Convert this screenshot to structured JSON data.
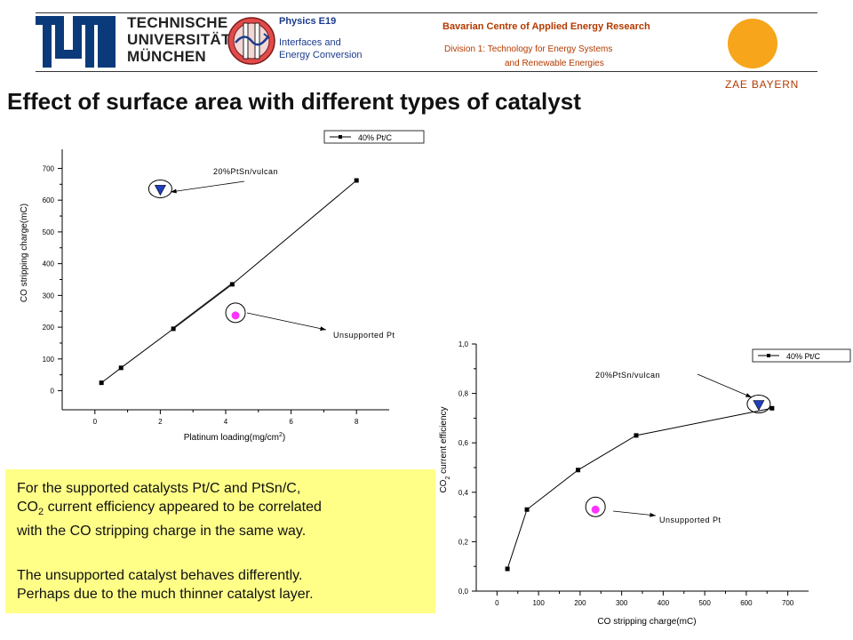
{
  "header": {
    "tum_name_lines": [
      "TECHNISCHE",
      "UNIVERSITÄT",
      "MÜNCHEN"
    ],
    "physics_title": "Physics E19",
    "physics_subtitle_lines": [
      "Interfaces and",
      "Energy Conversion"
    ],
    "zae_title": "Bavarian Centre of Applied Energy Research",
    "zae_division_lines": [
      "Division 1: Technology for Energy Systems",
      "and Renewable Energies"
    ],
    "zae_name": "ZAE BAYERN",
    "zae_sun_color": "#f7a51a"
  },
  "slide": {
    "title": "Effect of surface area with different types of catalyst"
  },
  "note": {
    "para1_lines": [
      "For the supported catalysts Pt/C and PtSn/C,",
      "current efficiency appeared to be correlated",
      "with the CO stripping charge in the same way."
    ],
    "co2_prefix": "CO",
    "co2_sub": "2",
    "para2_lines": [
      "The unsupported catalyst behaves differently.",
      "Perhaps due to the much thinner catalyst layer."
    ],
    "background_color": "#ffff88"
  },
  "chart_data": [
    {
      "type": "line",
      "xlabel": "Platinum loading(mg/cm",
      "xlabel_sup": "2",
      "xlabel_suffix": ")",
      "ylabel": "CO stripping charge(mC)",
      "xlim": [
        -1,
        9
      ],
      "ylim": [
        -60,
        760
      ],
      "xticks": [
        0,
        2,
        4,
        6,
        8
      ],
      "yticks": [
        0,
        100,
        200,
        300,
        400,
        500,
        600,
        700
      ],
      "legend_position": "top-right",
      "series": [
        {
          "name": "40% Pt/C",
          "x": [
            0.2,
            0.8,
            2.4,
            4.2,
            8.0
          ],
          "y": [
            25,
            72,
            195,
            335,
            662
          ]
        }
      ],
      "extra_points": [
        {
          "label": "20%PtSn/vulcan",
          "x": 2.0,
          "y": 630,
          "marker": "triangle-down",
          "color": "#1f3fbf"
        },
        {
          "label": "Unsupported Pt",
          "x": 4.3,
          "y": 237,
          "marker": "circle",
          "color": "#ff33ff"
        }
      ],
      "annotations": [
        "20%PtSn/vulcan",
        "Unsupported Pt"
      ]
    },
    {
      "type": "line",
      "xlabel": "CO stripping charge(mC)",
      "ylabel_prefix": "CO",
      "ylabel_sub": "2",
      "ylabel_suffix": " current efficiency",
      "xlim": [
        -50,
        750
      ],
      "ylim": [
        0.0,
        1.0
      ],
      "xticks": [
        0,
        100,
        200,
        300,
        400,
        500,
        600,
        700
      ],
      "yticks": [
        "0,0",
        "0,2",
        "0,4",
        "0,6",
        "0,8",
        "1,0"
      ],
      "legend_position": "top-right",
      "series": [
        {
          "name": "40% Pt/C",
          "x": [
            25,
            72,
            195,
            335,
            662
          ],
          "y": [
            0.09,
            0.33,
            0.49,
            0.63,
            0.74
          ]
        }
      ],
      "extra_points": [
        {
          "label": "20%PtSn/vulcan",
          "x": 630,
          "y": 0.75,
          "marker": "triangle-down",
          "color": "#1f3fbf"
        },
        {
          "label": "Unsupported Pt",
          "x": 237,
          "y": 0.33,
          "marker": "circle",
          "color": "#ff33ff"
        }
      ],
      "annotations": [
        "20%PtSn/vulcan",
        "Unsupported Pt"
      ]
    }
  ]
}
